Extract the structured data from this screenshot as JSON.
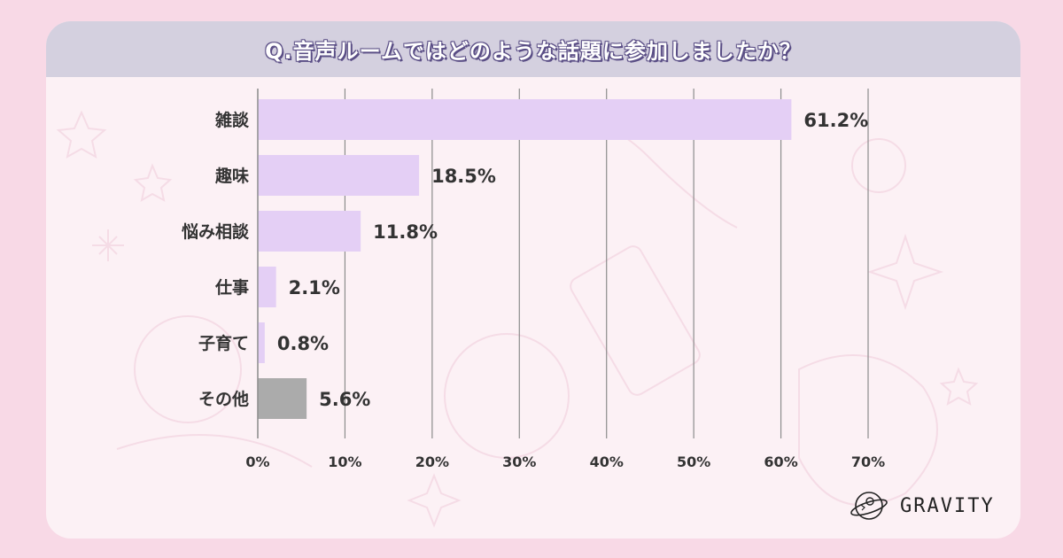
{
  "title": "Q.音声ルームではどのような話題に参加しましたか？",
  "brand": "GRAVITY",
  "colors": {
    "bar": "#e4cff5",
    "bar_other": "#ababab",
    "grid": "#8c8c8c",
    "text": "#333333"
  },
  "chart_data": {
    "type": "bar",
    "orientation": "horizontal",
    "categories": [
      "雑談",
      "趣味",
      "悩み相談",
      "仕事",
      "子育て",
      "その他"
    ],
    "values": [
      61.2,
      18.5,
      11.8,
      2.1,
      0.8,
      5.6
    ],
    "value_labels": [
      "61.2%",
      "18.5%",
      "11.8%",
      "2.1%",
      "0.8%",
      "5.6%"
    ],
    "x_ticks": [
      "0%",
      "10%",
      "20%",
      "30%",
      "40%",
      "50%",
      "60%",
      "70%"
    ],
    "xlim": [
      0,
      70
    ],
    "title": "Q.音声ルームではどのような話題に参加しましたか？",
    "xlabel": "",
    "ylabel": "",
    "grid": true,
    "legend": "none"
  }
}
